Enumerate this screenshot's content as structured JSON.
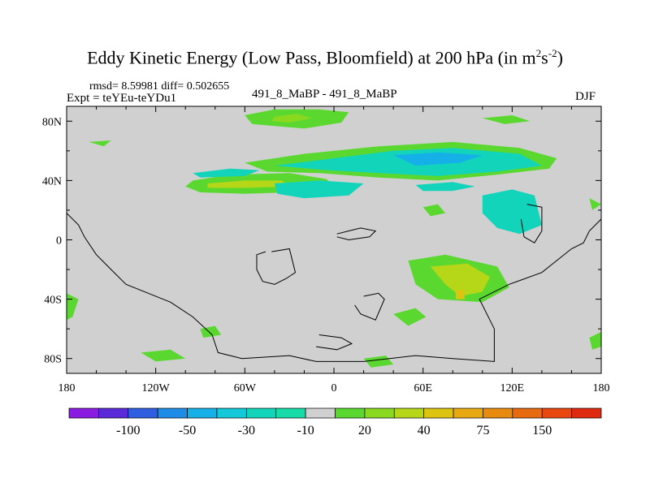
{
  "chart_data": {
    "type": "heatmap",
    "title": "Eddy Kinetic Energy (Low Pass, Bloomfield) at 200 hPa (in m",
    "title_units_exp1": "2",
    "title_units_mid": "s",
    "title_units_exp2": "-2",
    "title_close": ")",
    "stats_line": "rmsd= 8.59981 diff= 0.502655",
    "expt_line": "Expt = teYEu-teYDu1",
    "center_label": "491_8_MaBP - 491_8_MaBP",
    "season": "DJF",
    "x_ticks": [
      "180",
      "120W",
      "60W",
      "0",
      "60E",
      "120E",
      "180"
    ],
    "x_tick_values": [
      -180,
      -120,
      -60,
      0,
      60,
      120,
      180
    ],
    "y_ticks": [
      "80N",
      "40N",
      "0",
      "40S",
      "80S"
    ],
    "y_tick_values": [
      80,
      40,
      0,
      -40,
      -80
    ],
    "xlim": [
      -180,
      180
    ],
    "ylim": [
      -90,
      90
    ],
    "colorbar": {
      "labels": [
        "-100",
        "-50",
        "-30",
        "-10",
        "20",
        "40",
        "75",
        "150"
      ],
      "colors": [
        "#8a1be0",
        "#5a2ad8",
        "#2f5ee0",
        "#1e8ce6",
        "#15b0e8",
        "#13c8d8",
        "#12d4bb",
        "#18dca8",
        "#d0d0d0",
        "#5ad830",
        "#8ad820",
        "#b6d618",
        "#dcc410",
        "#e8a810",
        "#e88a10",
        "#e86a10",
        "#e84810",
        "#e02a10"
      ]
    },
    "regions": [
      {
        "label": "Arctic Atlantic-Europe",
        "color": "#5ad830",
        "points": [
          [
            -60,
            84
          ],
          [
            -40,
            88
          ],
          [
            -10,
            88
          ],
          [
            10,
            86
          ],
          [
            5,
            79
          ],
          [
            -20,
            75
          ],
          [
            -55,
            78
          ]
        ]
      },
      {
        "label": "Arctic core",
        "color": "#8ad820",
        "points": [
          [
            -40,
            83
          ],
          [
            -25,
            85
          ],
          [
            -15,
            82
          ],
          [
            -30,
            79
          ],
          [
            -42,
            80
          ]
        ]
      },
      {
        "label": "Arctic Asia",
        "color": "#5ad830",
        "points": [
          [
            100,
            82
          ],
          [
            120,
            84
          ],
          [
            132,
            80
          ],
          [
            115,
            78
          ]
        ]
      },
      {
        "label": "North Atlantic jet",
        "color": "#5ad830",
        "points": [
          [
            -95,
            40
          ],
          [
            -70,
            44
          ],
          [
            -30,
            45
          ],
          [
            -5,
            41
          ],
          [
            0,
            36
          ],
          [
            -30,
            32
          ],
          [
            -60,
            31
          ],
          [
            -90,
            32
          ],
          [
            -100,
            36
          ]
        ]
      },
      {
        "label": "North Atlantic jet core",
        "color": "#b6d618",
        "points": [
          [
            -85,
            38
          ],
          [
            -60,
            40
          ],
          [
            -35,
            40
          ],
          [
            -30,
            36
          ],
          [
            -60,
            35
          ],
          [
            -85,
            35
          ]
        ]
      },
      {
        "label": "North Atlantic jet cyan",
        "color": "#12d4bb",
        "points": [
          [
            -95,
            45
          ],
          [
            -70,
            48
          ],
          [
            -50,
            47
          ],
          [
            -60,
            43
          ],
          [
            -90,
            42
          ]
        ]
      },
      {
        "label": "Eurasian jet",
        "color": "#5ad830",
        "points": [
          [
            -60,
            52
          ],
          [
            -20,
            58
          ],
          [
            30,
            63
          ],
          [
            80,
            66
          ],
          [
            125,
            62
          ],
          [
            150,
            55
          ],
          [
            145,
            48
          ],
          [
            110,
            44
          ],
          [
            70,
            40
          ],
          [
            30,
            42
          ],
          [
            -10,
            45
          ],
          [
            -45,
            46
          ]
        ]
      },
      {
        "label": "Eurasian jet cyan",
        "color": "#12d4bb",
        "points": [
          [
            -40,
            50
          ],
          [
            0,
            55
          ],
          [
            40,
            60
          ],
          [
            80,
            62
          ],
          [
            125,
            58
          ],
          [
            140,
            50
          ],
          [
            110,
            46
          ],
          [
            70,
            43
          ],
          [
            30,
            45
          ],
          [
            -5,
            47
          ]
        ]
      },
      {
        "label": "Eurasian jet blue",
        "color": "#15b0e8",
        "points": [
          [
            40,
            57
          ],
          [
            70,
            59
          ],
          [
            100,
            57
          ],
          [
            85,
            52
          ],
          [
            55,
            50
          ]
        ]
      },
      {
        "label": "Mid-latitude band",
        "color": "#12d4bb",
        "points": [
          [
            -40,
            38
          ],
          [
            -10,
            40
          ],
          [
            20,
            38
          ],
          [
            10,
            30
          ],
          [
            -20,
            28
          ],
          [
            -38,
            31
          ]
        ]
      },
      {
        "label": "Central Asia patch",
        "color": "#12d4bb",
        "points": [
          [
            55,
            37
          ],
          [
            80,
            39
          ],
          [
            95,
            36
          ],
          [
            80,
            33
          ],
          [
            60,
            33
          ]
        ]
      },
      {
        "label": "NW Pacific blob",
        "color": "#5ad830",
        "points": [
          [
            60,
            22
          ],
          [
            70,
            24
          ],
          [
            75,
            18
          ],
          [
            65,
            16
          ]
        ]
      },
      {
        "label": "Indian Ocean cyan",
        "color": "#12d4bb",
        "points": [
          [
            100,
            30
          ],
          [
            120,
            34
          ],
          [
            135,
            30
          ],
          [
            140,
            10
          ],
          [
            125,
            4
          ],
          [
            110,
            8
          ],
          [
            100,
            18
          ]
        ]
      },
      {
        "label": "South Indian Ocean",
        "color": "#5ad830",
        "points": [
          [
            50,
            -14
          ],
          [
            75,
            -10
          ],
          [
            110,
            -18
          ],
          [
            118,
            -32
          ],
          [
            100,
            -42
          ],
          [
            70,
            -40
          ],
          [
            55,
            -30
          ]
        ]
      },
      {
        "label": "South Indian Ocean core",
        "color": "#b6d618",
        "points": [
          [
            65,
            -18
          ],
          [
            90,
            -16
          ],
          [
            105,
            -25
          ],
          [
            100,
            -35
          ],
          [
            85,
            -38
          ],
          [
            75,
            -30
          ]
        ]
      },
      {
        "label": "S Indian orange speck",
        "color": "#dcc410",
        "points": [
          [
            82,
            -34
          ],
          [
            88,
            -34
          ],
          [
            88,
            -40
          ],
          [
            82,
            -40
          ]
        ]
      },
      {
        "label": "Eastern Atlantic green",
        "color": "#5ad830",
        "points": [
          [
            40,
            -50
          ],
          [
            55,
            -46
          ],
          [
            62,
            -52
          ],
          [
            50,
            -58
          ]
        ]
      },
      {
        "label": "South Atlantic patch",
        "color": "#5ad830",
        "points": [
          [
            -130,
            -76
          ],
          [
            -110,
            -74
          ],
          [
            -100,
            -80
          ],
          [
            -120,
            -82
          ]
        ]
      },
      {
        "label": "South Pacific patch",
        "color": "#5ad830",
        "points": [
          [
            -90,
            -60
          ],
          [
            -80,
            -58
          ],
          [
            -76,
            -64
          ],
          [
            -88,
            -66
          ]
        ]
      },
      {
        "label": "Southern Ocean patch",
        "color": "#5ad830",
        "points": [
          [
            20,
            -80
          ],
          [
            35,
            -78
          ],
          [
            40,
            -84
          ],
          [
            25,
            -86
          ]
        ]
      },
      {
        "label": "West rim",
        "color": "#5ad830",
        "points": [
          [
            -180,
            -36
          ],
          [
            -172,
            -40
          ],
          [
            -176,
            -52
          ],
          [
            -180,
            -54
          ]
        ]
      },
      {
        "label": "East rim",
        "color": "#5ad830",
        "points": [
          [
            172,
            -66
          ],
          [
            180,
            -62
          ],
          [
            180,
            -72
          ],
          [
            174,
            -74
          ]
        ]
      },
      {
        "label": "N Pacific west patch",
        "color": "#5ad830",
        "points": [
          [
            -165,
            66
          ],
          [
            -150,
            67
          ],
          [
            -155,
            63
          ]
        ]
      },
      {
        "label": "N Pacific east patch",
        "color": "#5ad830",
        "points": [
          [
            180,
            24
          ],
          [
            172,
            28
          ],
          [
            174,
            20
          ]
        ]
      }
    ],
    "coastlines": [
      [
        [
          -180,
          18
        ],
        [
          -172,
          10
        ],
        [
          -168,
          2
        ],
        [
          -160,
          -10
        ],
        [
          -150,
          -20
        ],
        [
          -140,
          -30
        ],
        [
          -125,
          -36
        ],
        [
          -110,
          -42
        ],
        [
          -95,
          -52
        ],
        [
          -82,
          -64
        ],
        [
          -78,
          -76
        ],
        [
          -62,
          -80
        ],
        [
          -30,
          -78
        ],
        [
          -12,
          -82
        ],
        [
          20,
          -82
        ],
        [
          55,
          -78
        ],
        [
          80,
          -80
        ],
        [
          108,
          -82
        ],
        [
          108,
          -60
        ],
        [
          98,
          -40
        ],
        [
          118,
          -30
        ],
        [
          140,
          -22
        ],
        [
          160,
          -6
        ],
        [
          168,
          -2
        ],
        [
          172,
          6
        ],
        [
          178,
          12
        ],
        [
          180,
          14
        ]
      ],
      [
        [
          -42,
          -8
        ],
        [
          -30,
          -6
        ],
        [
          -26,
          -22
        ],
        [
          -32,
          -26
        ],
        [
          -40,
          -30
        ],
        [
          -48,
          -28
        ],
        [
          -52,
          -20
        ],
        [
          -52,
          -10
        ],
        [
          -46,
          -8
        ]
      ],
      [
        [
          20,
          -38
        ],
        [
          30,
          -36
        ],
        [
          34,
          -40
        ],
        [
          28,
          -54
        ],
        [
          18,
          -50
        ],
        [
          14,
          -44
        ]
      ],
      [
        [
          2,
          4
        ],
        [
          10,
          6
        ],
        [
          18,
          8
        ],
        [
          28,
          6
        ],
        [
          24,
          2
        ],
        [
          10,
          0
        ],
        [
          2,
          2
        ]
      ],
      [
        [
          130,
          24
        ],
        [
          140,
          22
        ],
        [
          140,
          6
        ],
        [
          135,
          -2
        ],
        [
          128,
          2
        ],
        [
          126,
          14
        ]
      ],
      [
        [
          -10,
          -64
        ],
        [
          5,
          -66
        ],
        [
          12,
          -70
        ],
        [
          2,
          -74
        ],
        [
          -12,
          -72
        ]
      ]
    ]
  }
}
